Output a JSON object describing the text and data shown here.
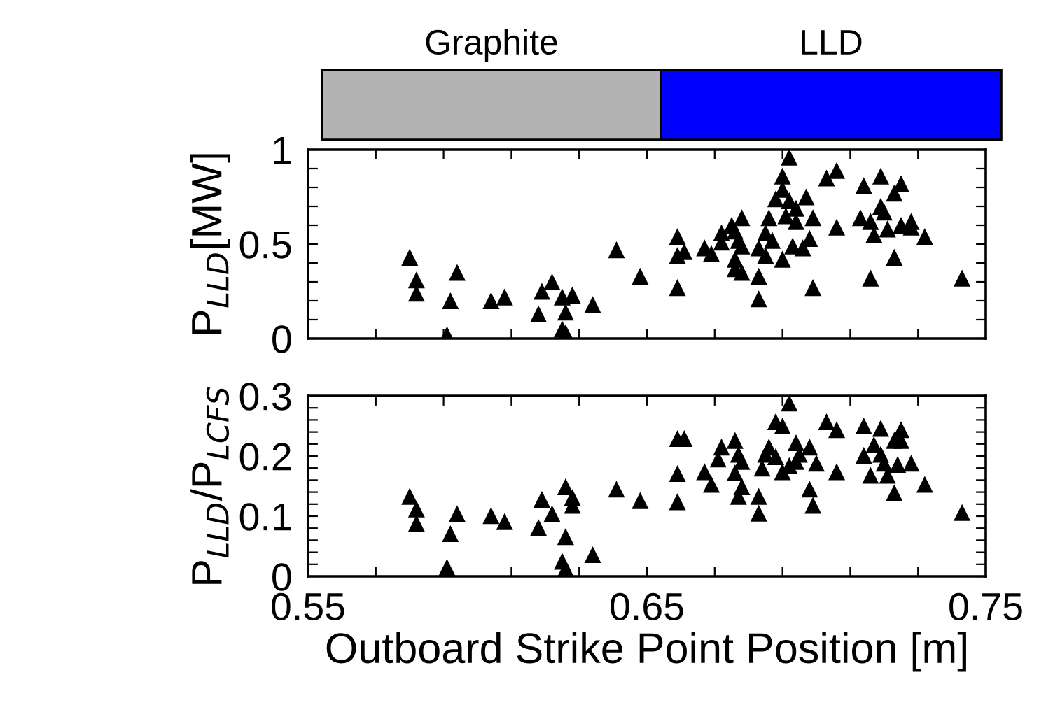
{
  "chart_data": [
    {
      "type": "scatter",
      "ylabel": "P$_{LLD}$[MW]",
      "marker": "triangle",
      "tick_labels": "y",
      "annotations": [
        "Graphite",
        "LLD"
      ],
      "xlim": [
        0.55,
        0.75
      ],
      "xticks": [
        0.55,
        {
          "value": 0.57,
          "label": null
        },
        {
          "value": 0.59,
          "label": null
        },
        {
          "value": 0.61,
          "label": null
        },
        {
          "value": 0.63,
          "label": null
        },
        0.65,
        {
          "value": 0.67,
          "label": null
        },
        {
          "value": 0.69,
          "label": null
        },
        {
          "value": 0.71,
          "label": null
        },
        {
          "value": 0.73,
          "label": null
        },
        0.75
      ],
      "ylim": [
        0,
        1
      ],
      "yticks": [
        0,
        {
          "value": 0.1,
          "label": null
        },
        {
          "value": 0.2,
          "label": null
        },
        {
          "value": 0.3,
          "label": null
        },
        {
          "value": 0.4,
          "label": null
        },
        0.5,
        {
          "value": 0.6,
          "label": null
        },
        {
          "value": 0.7,
          "label": null
        },
        {
          "value": 0.8,
          "label": null
        },
        {
          "value": 0.9,
          "label": null
        },
        1
      ],
      "series": [
        {
          "color": "#000000",
          "x": [
            0.58,
            0.582,
            0.582,
            0.594,
            0.592,
            0.591,
            0.604,
            0.608,
            0.619,
            0.622,
            0.618,
            0.625,
            0.628,
            0.626,
            0.625,
            0.626,
            0.634,
            0.641,
            0.648,
            0.659,
            0.659,
            0.661,
            0.659,
            0.667,
            0.669,
            0.672,
            0.672,
            0.675,
            0.676,
            0.678,
            0.677,
            0.678,
            0.676,
            0.676,
            0.678,
            0.683,
            0.683,
            0.685,
            0.687,
            0.683,
            0.685,
            0.686,
            0.69,
            0.69,
            0.692,
            0.69,
            0.688,
            0.692,
            0.694,
            0.691,
            0.694,
            0.697,
            0.699,
            0.693,
            0.696,
            0.698,
            0.699,
            0.703,
            0.706,
            0.706,
            0.714,
            0.713,
            0.716,
            0.717,
            0.716,
            0.719,
            0.719,
            0.72,
            0.721,
            0.723,
            0.725,
            0.725,
            0.728,
            0.728,
            0.723,
            0.732,
            0.743
          ],
          "values": [
            0.43,
            0.31,
            0.24,
            0.35,
            0.2,
            0.02,
            0.2,
            0.22,
            0.25,
            0.3,
            0.13,
            0.22,
            0.23,
            0.14,
            0.05,
            0.03,
            0.18,
            0.47,
            0.33,
            0.54,
            0.44,
            0.46,
            0.27,
            0.48,
            0.45,
            0.56,
            0.51,
            0.6,
            0.57,
            0.64,
            0.52,
            0.49,
            0.42,
            0.37,
            0.35,
            0.33,
            0.21,
            0.56,
            0.52,
            0.48,
            0.44,
            0.64,
            0.42,
            0.86,
            0.96,
            0.79,
            0.74,
            0.73,
            0.69,
            0.65,
            0.62,
            0.75,
            0.64,
            0.49,
            0.48,
            0.53,
            0.27,
            0.85,
            0.89,
            0.59,
            0.81,
            0.64,
            0.62,
            0.55,
            0.32,
            0.86,
            0.7,
            0.67,
            0.58,
            0.77,
            0.82,
            0.6,
            0.62,
            0.59,
            0.43,
            0.54,
            0.32
          ]
        }
      ]
    },
    {
      "type": "scatter",
      "ylabel": "P$_{LLD}$/P$_{LCFS}$",
      "xlabel": "Outboard Strike Point Position [m]",
      "marker": "triangle",
      "xlim": [
        0.55,
        0.75
      ],
      "xticks": [
        0.55,
        {
          "value": 0.57,
          "label": null
        },
        {
          "value": 0.59,
          "label": null
        },
        {
          "value": 0.61,
          "label": null
        },
        {
          "value": 0.63,
          "label": null
        },
        0.65,
        {
          "value": 0.67,
          "label": null
        },
        {
          "value": 0.69,
          "label": null
        },
        {
          "value": 0.71,
          "label": null
        },
        {
          "value": 0.73,
          "label": null
        },
        0.75
      ],
      "ylim": [
        0,
        0.3
      ],
      "yticks": [
        0,
        {
          "value": 0.02,
          "label": null
        },
        {
          "value": 0.04,
          "label": null
        },
        {
          "value": 0.06,
          "label": null
        },
        {
          "value": 0.08,
          "label": null
        },
        0.1,
        {
          "value": 0.12,
          "label": null
        },
        {
          "value": 0.14,
          "label": null
        },
        {
          "value": 0.16,
          "label": null
        },
        {
          "value": 0.18,
          "label": null
        },
        0.2,
        {
          "value": 0.22,
          "label": null
        },
        {
          "value": 0.24,
          "label": null
        },
        {
          "value": 0.26,
          "label": null
        },
        {
          "value": 0.28,
          "label": null
        },
        0.3
      ],
      "series": [
        {
          "color": "#000000",
          "x": [
            0.58,
            0.582,
            0.582,
            0.594,
            0.592,
            0.591,
            0.604,
            0.608,
            0.619,
            0.622,
            0.618,
            0.626,
            0.628,
            0.628,
            0.626,
            0.625,
            0.626,
            0.634,
            0.641,
            0.648,
            0.659,
            0.661,
            0.659,
            0.659,
            0.667,
            0.669,
            0.672,
            0.671,
            0.676,
            0.677,
            0.678,
            0.676,
            0.678,
            0.677,
            0.683,
            0.683,
            0.685,
            0.686,
            0.684,
            0.688,
            0.688,
            0.69,
            0.692,
            0.69,
            0.692,
            0.694,
            0.695,
            0.694,
            0.698,
            0.7,
            0.698,
            0.699,
            0.703,
            0.706,
            0.706,
            0.714,
            0.714,
            0.717,
            0.716,
            0.719,
            0.719,
            0.72,
            0.721,
            0.723,
            0.725,
            0.725,
            0.724,
            0.728,
            0.723,
            0.732,
            0.743
          ],
          "values": [
            0.133,
            0.112,
            0.088,
            0.104,
            0.071,
            0.015,
            0.101,
            0.091,
            0.128,
            0.104,
            0.081,
            0.149,
            0.131,
            0.118,
            0.066,
            0.025,
            0.013,
            0.036,
            0.145,
            0.126,
            0.229,
            0.229,
            0.171,
            0.124,
            0.174,
            0.153,
            0.215,
            0.195,
            0.226,
            0.203,
            0.191,
            0.172,
            0.149,
            0.133,
            0.133,
            0.105,
            0.203,
            0.215,
            0.18,
            0.199,
            0.257,
            0.25,
            0.288,
            0.174,
            0.184,
            0.222,
            0.203,
            0.191,
            0.215,
            0.188,
            0.145,
            0.118,
            0.257,
            0.244,
            0.174,
            0.25,
            0.201,
            0.219,
            0.168,
            0.246,
            0.203,
            0.188,
            0.168,
            0.226,
            0.244,
            0.226,
            0.186,
            0.188,
            0.139,
            0.153,
            0.106
          ]
        }
      ]
    }
  ]
}
